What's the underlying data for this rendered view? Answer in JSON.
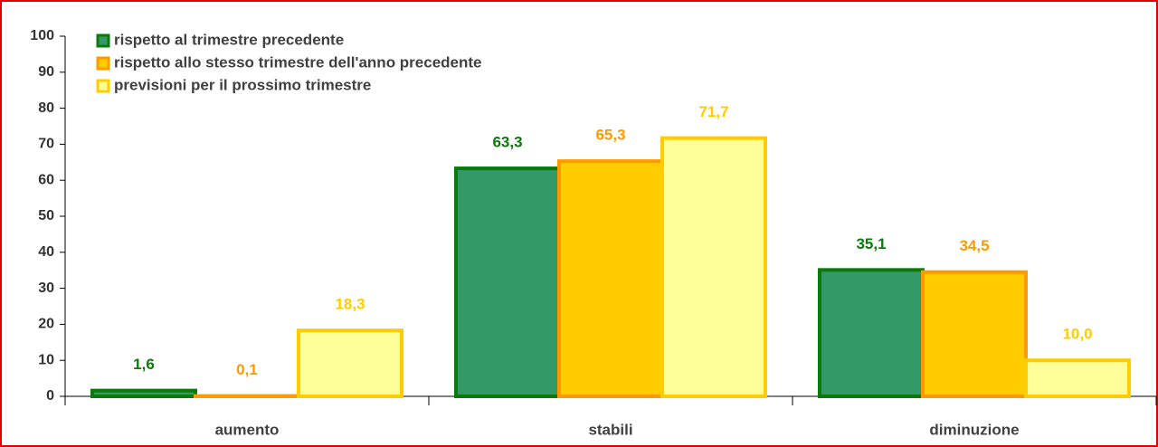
{
  "chart_data": {
    "type": "bar",
    "categories": [
      "aumento",
      "stabili",
      "diminuzione"
    ],
    "series": [
      {
        "name": "rispetto al trimestre precedente",
        "color": "#339966",
        "border": "#0a7a0a",
        "label_color": "#0a7a0a",
        "values": [
          1.6,
          63.3,
          35.1
        ],
        "value_labels": [
          "1,6",
          "63,3",
          "35,1"
        ]
      },
      {
        "name": "rispetto allo stesso trimestre dell'anno precedente",
        "color": "#ffcc00",
        "border": "#ff9900",
        "label_color": "#ff9900",
        "values": [
          0.1,
          65.3,
          34.5
        ],
        "value_labels": [
          "0,1",
          "65,3",
          "34,5"
        ]
      },
      {
        "name": "previsioni per il prossimo trimestre",
        "color": "#ffff99",
        "border": "#ffcc00",
        "label_color": "#ffcc00",
        "values": [
          18.3,
          71.7,
          10.0
        ],
        "value_labels": [
          "18,3",
          "71,7",
          "10,0"
        ]
      }
    ],
    "ylim": [
      0,
      100
    ],
    "yticks": [
      0,
      10,
      20,
      30,
      40,
      50,
      60,
      70,
      80,
      90,
      100
    ],
    "grid": false,
    "legend": "top-left"
  }
}
